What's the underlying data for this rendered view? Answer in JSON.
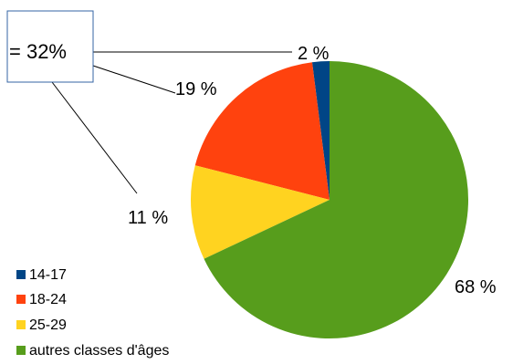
{
  "chart_data": {
    "type": "pie",
    "title": "",
    "slices": [
      {
        "label": "14-17",
        "value": 2,
        "value_text": "2 %",
        "color": "#004586"
      },
      {
        "label": "18-24",
        "value": 19,
        "value_text": "19 %",
        "color": "#ff420e"
      },
      {
        "label": "25-29",
        "value": 11,
        "value_text": "11 %",
        "color": "#ffd320"
      },
      {
        "label": "autres classes d'âges",
        "value": 68,
        "value_text": "68 %",
        "color": "#579d1c"
      }
    ],
    "legend_position": "bottom-left",
    "annotation": {
      "text": "= 32%"
    }
  }
}
